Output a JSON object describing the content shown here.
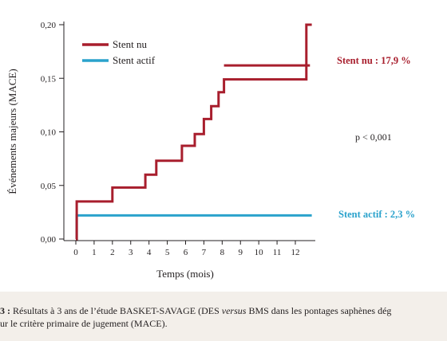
{
  "chart_data": {
    "type": "line",
    "step": true,
    "title": "",
    "xlabel": "Temps (mois)",
    "ylabel": "Événements majeurs (MACE)",
    "xlim": [
      0,
      13
    ],
    "ylim": [
      0,
      0.2
    ],
    "x_ticks": [
      0,
      1,
      2,
      3,
      4,
      5,
      6,
      7,
      8,
      9,
      10,
      11,
      12
    ],
    "x_tick_labels": [
      "0",
      "1",
      "2",
      "3",
      "4",
      "5",
      "6",
      "7",
      "8",
      "9",
      "10",
      "11",
      "12"
    ],
    "y_ticks": [
      0,
      0.05,
      0.1,
      0.15,
      0.2
    ],
    "y_tick_labels": [
      "0,00",
      "0,05",
      "0,10",
      "0,15",
      "0,20"
    ],
    "legend_position": "top-left",
    "series": [
      {
        "name": "Stent nu",
        "color": "#a81e2d",
        "x": [
          0,
          0.05,
          0.05,
          2,
          2,
          3.8,
          3.8,
          4.4,
          4.4,
          5.8,
          5.8,
          6.5,
          6.5,
          7.0,
          7.0,
          7.4,
          7.4,
          7.8,
          7.8,
          8.1,
          8.1,
          12.6,
          12.6,
          12.8
        ],
        "y": [
          0,
          0,
          0.035,
          0.035,
          0.048,
          0.048,
          0.06,
          0.06,
          0.073,
          0.073,
          0.087,
          0.087,
          0.098,
          0.098,
          0.112,
          0.112,
          0.124,
          0.124,
          0.137,
          0.137,
          0.149,
          0.149,
          0.162,
          0.162
        ]
      },
      {
        "name": "Stent actif",
        "color": "#2aa2cc",
        "x": [
          0,
          0.05,
          0.05,
          12.9
        ],
        "y": [
          0,
          0,
          0.022,
          0.022
        ]
      }
    ],
    "extra_red_steps": {
      "x": [
        8.1,
        12.6,
        12.6,
        12.9
      ],
      "y": [
        0.162,
        0.162,
        0.2,
        0.2
      ]
    },
    "annotations": {
      "stent_nu": "Stent nu : 17,9 %",
      "p_value": "p < 0,001",
      "stent_actif": "Stent actif : 2,3 %"
    }
  },
  "caption": {
    "prefix": "3 : ",
    "text_before": "Résultats à 3 ans de l’étude BASKET-SAVAGE (DES ",
    "versus": "versus",
    "text_after": " BMS dans les pontages saphènes dég",
    "line2": "ur le critère primaire de jugement (MACE)."
  }
}
